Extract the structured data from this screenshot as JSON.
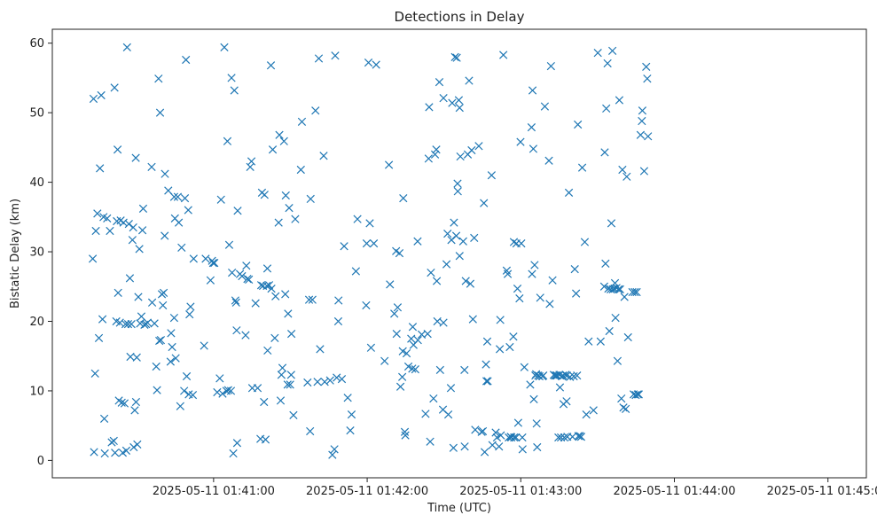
{
  "chart_data": {
    "type": "scatter",
    "title": "Detections in Delay",
    "xlabel": "Time (UTC)",
    "ylabel": "Bistatic Delay (km)",
    "marker": "x",
    "color": "#1f77b4",
    "grid": false,
    "legend": "none",
    "x_unit": "seconds after 2025-05-11 01:40:00 UTC",
    "xlim": [
      -3,
      315
    ],
    "ylim": [
      -2.5,
      62
    ],
    "x_ticks": [
      {
        "value": 60,
        "label": "2025-05-11 01:41:00"
      },
      {
        "value": 120,
        "label": "2025-05-11 01:42:00"
      },
      {
        "value": 180,
        "label": "2025-05-11 01:43:00"
      },
      {
        "value": 240,
        "label": "2025-05-11 01:44:00"
      },
      {
        "value": 300,
        "label": "2025-05-11 01:45:00"
      }
    ],
    "y_ticks": [
      {
        "value": 0,
        "label": "0"
      },
      {
        "value": 10,
        "label": "10"
      },
      {
        "value": 20,
        "label": "20"
      },
      {
        "value": 30,
        "label": "30"
      },
      {
        "value": 40,
        "label": "40"
      },
      {
        "value": 50,
        "label": "50"
      },
      {
        "value": 60,
        "label": "60"
      }
    ],
    "points": [
      [
        12.8,
        29
      ],
      [
        13.1,
        52
      ],
      [
        13.3,
        1.2
      ],
      [
        13.7,
        12.5
      ],
      [
        14,
        33
      ],
      [
        14.6,
        35.5
      ],
      [
        15.2,
        17.6
      ],
      [
        15.6,
        42
      ],
      [
        16.1,
        52.5
      ],
      [
        16.6,
        20.3
      ],
      [
        17,
        35
      ],
      [
        17.3,
        6
      ],
      [
        17.5,
        1
      ],
      [
        18.4,
        34.8
      ],
      [
        19.5,
        33
      ],
      [
        20.2,
        2.6
      ],
      [
        21,
        2.8
      ],
      [
        21.3,
        53.6
      ],
      [
        21.5,
        1.1
      ],
      [
        22,
        20
      ],
      [
        22.2,
        34.4
      ],
      [
        22.5,
        44.7
      ],
      [
        22.7,
        24.1
      ],
      [
        23,
        8.6
      ],
      [
        23.4,
        19.8
      ],
      [
        23.7,
        34.5
      ],
      [
        24.1,
        8.3
      ],
      [
        24.5,
        1.1
      ],
      [
        24.8,
        34.2
      ],
      [
        25.2,
        8.2
      ],
      [
        25.6,
        19.6
      ],
      [
        25.9,
        1.4
      ],
      [
        26.2,
        59.4
      ],
      [
        26.6,
        19.6
      ],
      [
        26.9,
        34
      ],
      [
        27.3,
        26.2
      ],
      [
        27.5,
        14.9
      ],
      [
        27.9,
        19.6
      ],
      [
        28.3,
        31.7
      ],
      [
        28.6,
        33.5
      ],
      [
        28.8,
        1.9
      ],
      [
        29.2,
        7.2
      ],
      [
        29.6,
        43.5
      ],
      [
        29.7,
        8.4
      ],
      [
        30,
        14.8
      ],
      [
        30.2,
        2.3
      ],
      [
        30.6,
        23.5
      ],
      [
        31,
        30.4
      ],
      [
        31.3,
        19.7
      ],
      [
        31.8,
        20.7
      ],
      [
        32.2,
        33.1
      ],
      [
        32.5,
        36.2
      ],
      [
        33,
        19.5
      ],
      [
        33.6,
        19.6
      ],
      [
        34.2,
        19.8
      ],
      [
        35.8,
        42.2
      ],
      [
        36,
        22.7
      ],
      [
        36.9,
        19.7
      ],
      [
        37.6,
        13.5
      ],
      [
        37.9,
        10.1
      ],
      [
        38.5,
        54.9
      ],
      [
        38.8,
        17.2
      ],
      [
        39.1,
        50
      ],
      [
        39.4,
        17.3
      ],
      [
        39.8,
        23.9
      ],
      [
        40.2,
        22.3
      ],
      [
        40.5,
        24.1
      ],
      [
        40.9,
        32.3
      ],
      [
        41,
        41.2
      ],
      [
        42.3,
        38.8
      ],
      [
        43.2,
        14.2
      ],
      [
        43.4,
        18.3
      ],
      [
        43.8,
        16.3
      ],
      [
        44.6,
        20.5
      ],
      [
        44.6,
        37.9
      ],
      [
        44.9,
        34.8
      ],
      [
        45.2,
        14.7
      ],
      [
        46,
        37.9
      ],
      [
        46.4,
        34.2
      ],
      [
        47,
        7.8
      ],
      [
        47.5,
        30.6
      ],
      [
        48.5,
        10
      ],
      [
        48.8,
        37.7
      ],
      [
        49.2,
        57.6
      ],
      [
        49.5,
        12.1
      ],
      [
        50.1,
        36
      ],
      [
        50.3,
        9.5
      ],
      [
        50.6,
        21
      ],
      [
        51,
        22.1
      ],
      [
        51.9,
        9.4
      ],
      [
        52.2,
        29
      ],
      [
        56.3,
        16.5
      ],
      [
        56.9,
        29
      ],
      [
        58.8,
        25.9
      ],
      [
        59.4,
        28.7
      ],
      [
        59.8,
        28.4
      ],
      [
        60.3,
        28.4
      ],
      [
        61.4,
        9.8
      ],
      [
        62.4,
        11.8
      ],
      [
        62.9,
        37.5
      ],
      [
        63.5,
        9.6
      ],
      [
        64.2,
        59.4
      ],
      [
        65,
        10
      ],
      [
        65.4,
        45.9
      ],
      [
        65.7,
        10.1
      ],
      [
        66.1,
        31
      ],
      [
        66.8,
        10
      ],
      [
        67,
        55
      ],
      [
        67.2,
        27
      ],
      [
        67.7,
        1
      ],
      [
        68.1,
        53.2
      ],
      [
        68.5,
        23
      ],
      [
        68.8,
        22.7
      ],
      [
        69,
        18.7
      ],
      [
        69.2,
        2.5
      ],
      [
        69.4,
        35.9
      ],
      [
        70.3,
        26.8
      ],
      [
        71.1,
        26.5
      ],
      [
        72.5,
        18
      ],
      [
        72.8,
        28
      ],
      [
        73.2,
        26.1
      ],
      [
        73.8,
        26
      ],
      [
        74.3,
        42.2
      ],
      [
        74.8,
        43
      ],
      [
        75.1,
        10.4
      ],
      [
        76.4,
        22.6
      ],
      [
        77.2,
        10.4
      ],
      [
        78.3,
        3.1
      ],
      [
        78.6,
        25.2
      ],
      [
        78.9,
        38.5
      ],
      [
        79.3,
        25.1
      ],
      [
        79.7,
        8.4
      ],
      [
        79.9,
        38.2
      ],
      [
        80.3,
        3
      ],
      [
        80.8,
        25.1
      ],
      [
        81,
        27.6
      ],
      [
        81.1,
        15.8
      ],
      [
        81.7,
        25.2
      ],
      [
        82.4,
        56.8
      ],
      [
        82.6,
        24.7
      ],
      [
        83.1,
        44.7
      ],
      [
        83.9,
        17.6
      ],
      [
        84.2,
        23.6
      ],
      [
        85.4,
        34.2
      ],
      [
        85.7,
        46.8
      ],
      [
        86.2,
        8.6
      ],
      [
        86.5,
        12.3
      ],
      [
        86.9,
        13.3
      ],
      [
        87.5,
        45.9
      ],
      [
        88,
        23.9
      ],
      [
        88.2,
        38.1
      ],
      [
        88.9,
        10.9
      ],
      [
        89.1,
        21.1
      ],
      [
        89.5,
        36.3
      ],
      [
        89.9,
        10.9
      ],
      [
        90.3,
        12.3
      ],
      [
        90.4,
        18.2
      ],
      [
        91.2,
        6.5
      ],
      [
        91.9,
        34.7
      ],
      [
        94.1,
        41.8
      ],
      [
        94.5,
        48.7
      ],
      [
        96.7,
        11.2
      ],
      [
        97.3,
        23.1
      ],
      [
        97.7,
        4.2
      ],
      [
        97.9,
        37.6
      ],
      [
        98.6,
        23.1
      ],
      [
        99.8,
        50.3
      ],
      [
        100.6,
        11.3
      ],
      [
        101.1,
        57.8
      ],
      [
        101.6,
        16
      ],
      [
        103,
        43.8
      ],
      [
        103.4,
        11.3
      ],
      [
        105.5,
        11.5
      ],
      [
        106.4,
        0.8
      ],
      [
        107.2,
        1.6
      ],
      [
        107.5,
        58.2
      ],
      [
        108.1,
        11.9
      ],
      [
        108.7,
        20
      ],
      [
        108.8,
        23
      ],
      [
        110.1,
        11.7
      ],
      [
        111,
        30.8
      ],
      [
        112.4,
        9
      ],
      [
        113.4,
        4.3
      ],
      [
        113.9,
        6.6
      ],
      [
        115.6,
        27.2
      ],
      [
        116.2,
        34.7
      ],
      [
        119.6,
        22.3
      ],
      [
        119.8,
        31.2
      ],
      [
        120.5,
        57.2
      ],
      [
        121,
        34.1
      ],
      [
        121.5,
        16.2
      ],
      [
        122.6,
        31.2
      ],
      [
        123.5,
        56.9
      ],
      [
        126.8,
        14.3
      ],
      [
        128.5,
        42.5
      ],
      [
        128.9,
        25.3
      ],
      [
        130.6,
        21.1
      ],
      [
        131.3,
        30.1
      ],
      [
        131.5,
        18.2
      ],
      [
        131.9,
        22
      ],
      [
        132.6,
        29.8
      ],
      [
        133,
        10.6
      ],
      [
        133.7,
        12
      ],
      [
        133.9,
        15.7
      ],
      [
        134.1,
        37.7
      ],
      [
        134.7,
        4.1
      ],
      [
        134.9,
        3.6
      ],
      [
        135.4,
        15.4
      ],
      [
        136.1,
        13.5
      ],
      [
        137.2,
        17.5
      ],
      [
        137.6,
        13.2
      ],
      [
        137.8,
        19.2
      ],
      [
        138.1,
        16.6
      ],
      [
        138.8,
        13.1
      ],
      [
        139.7,
        31.5
      ],
      [
        139.8,
        17.3
      ],
      [
        141.3,
        18.1
      ],
      [
        142.8,
        6.7
      ],
      [
        143.6,
        18.2
      ],
      [
        144,
        43.4
      ],
      [
        144.2,
        50.8
      ],
      [
        144.6,
        2.7
      ],
      [
        144.9,
        27
      ],
      [
        145.9,
        8.9
      ],
      [
        146.5,
        44
      ],
      [
        147,
        44.7
      ],
      [
        147.2,
        25.8
      ],
      [
        147.4,
        20
      ],
      [
        148.2,
        54.4
      ],
      [
        148.5,
        13
      ],
      [
        149.6,
        7.3
      ],
      [
        149.8,
        52.1
      ],
      [
        149.8,
        19.8
      ],
      [
        151,
        28.2
      ],
      [
        151.4,
        32.6
      ],
      [
        151.7,
        6.6
      ],
      [
        152.7,
        10.4
      ],
      [
        152.9,
        31.7
      ],
      [
        153.2,
        51.4
      ],
      [
        153.7,
        1.8
      ],
      [
        153.9,
        34.2
      ],
      [
        154.3,
        58
      ],
      [
        154.8,
        32.3
      ],
      [
        155,
        57.9
      ],
      [
        155.3,
        39.8
      ],
      [
        155.4,
        38.7
      ],
      [
        155.8,
        51.8
      ],
      [
        156.1,
        29.4
      ],
      [
        156.1,
        50.7
      ],
      [
        156.4,
        43.7
      ],
      [
        157.5,
        31.5
      ],
      [
        158,
        13
      ],
      [
        158.1,
        2
      ],
      [
        158.5,
        25.8
      ],
      [
        159.3,
        44
      ],
      [
        159.8,
        54.6
      ],
      [
        160.3,
        25.4
      ],
      [
        160.8,
        44.6
      ],
      [
        161.3,
        20.3
      ],
      [
        161.8,
        32
      ],
      [
        162.2,
        4.4
      ],
      [
        163.6,
        45.2
      ],
      [
        164.7,
        4.1
      ],
      [
        165.2,
        4.2
      ],
      [
        165.6,
        37
      ],
      [
        165.9,
        1.2
      ],
      [
        166.4,
        13.8
      ],
      [
        166.6,
        11.4
      ],
      [
        166.9,
        17.1
      ],
      [
        167.1,
        11.4
      ],
      [
        168.6,
        41
      ],
      [
        168.9,
        2.2
      ],
      [
        170.2,
        4
      ],
      [
        170.7,
        3.3
      ],
      [
        171.5,
        2
      ],
      [
        171.8,
        16
      ],
      [
        172,
        20.2
      ],
      [
        172.2,
        3.6
      ],
      [
        173.2,
        58.3
      ],
      [
        174.5,
        27.3
      ],
      [
        174.9,
        26.8
      ],
      [
        175.3,
        3.3
      ],
      [
        175.7,
        16.3
      ],
      [
        176.1,
        3.4
      ],
      [
        176.3,
        3.3
      ],
      [
        177.1,
        17.8
      ],
      [
        177.3,
        31.4
      ],
      [
        177.4,
        3.3
      ],
      [
        178.1,
        3.3
      ],
      [
        178.3,
        31.2
      ],
      [
        178.7,
        24.7
      ],
      [
        179,
        5.4
      ],
      [
        179.5,
        23.3
      ],
      [
        179.9,
        45.8
      ],
      [
        180.2,
        31.2
      ],
      [
        180.6,
        3.3
      ],
      [
        180.7,
        1.6
      ],
      [
        181.4,
        13.4
      ],
      [
        183.7,
        10.9
      ],
      [
        184.2,
        47.9
      ],
      [
        184.4,
        26.8
      ],
      [
        184.6,
        53.2
      ],
      [
        184.9,
        44.8
      ],
      [
        185.1,
        8.8
      ],
      [
        185.4,
        28.1
      ],
      [
        185.7,
        12.2
      ],
      [
        186,
        12.4
      ],
      [
        186.2,
        5.3
      ],
      [
        186.4,
        1.9
      ],
      [
        186.8,
        12.2
      ],
      [
        187.3,
        12.1
      ],
      [
        187.6,
        23.4
      ],
      [
        188.5,
        12.1
      ],
      [
        188.8,
        12.2
      ],
      [
        189.4,
        50.9
      ],
      [
        191,
        43.1
      ],
      [
        191.3,
        22.5
      ],
      [
        191.8,
        56.7
      ],
      [
        192.4,
        25.9
      ],
      [
        192.9,
        12.3
      ],
      [
        193.3,
        12.2
      ],
      [
        193.8,
        12.2
      ],
      [
        194.2,
        12.2
      ],
      [
        194.7,
        3.3
      ],
      [
        195.1,
        12.3
      ],
      [
        195.3,
        10.5
      ],
      [
        195.7,
        3.3
      ],
      [
        196.1,
        12.1
      ],
      [
        196.5,
        12.2
      ],
      [
        196.7,
        8.1
      ],
      [
        197,
        3.3
      ],
      [
        197.5,
        12.3
      ],
      [
        197.9,
        8.5
      ],
      [
        198,
        12.2
      ],
      [
        198.2,
        3.4
      ],
      [
        198.8,
        38.5
      ],
      [
        199.2,
        12
      ],
      [
        200.2,
        3.4
      ],
      [
        200.7,
        12.1
      ],
      [
        201.1,
        27.5
      ],
      [
        201.6,
        24
      ],
      [
        202,
        12.2
      ],
      [
        202.3,
        48.3
      ],
      [
        202.5,
        3.5
      ],
      [
        203.1,
        3.5
      ],
      [
        203.6,
        3.4
      ],
      [
        204,
        42.1
      ],
      [
        205,
        31.4
      ],
      [
        205.6,
        6.6
      ],
      [
        206.5,
        17.1
      ],
      [
        208.4,
        7.2
      ],
      [
        210.1,
        58.6
      ],
      [
        211.2,
        17.1
      ],
      [
        212.6,
        25
      ],
      [
        212.8,
        44.3
      ],
      [
        213.1,
        28.3
      ],
      [
        213.4,
        50.6
      ],
      [
        213.9,
        57.1
      ],
      [
        214.2,
        24.7
      ],
      [
        214.6,
        18.6
      ],
      [
        215.1,
        24.6
      ],
      [
        215.4,
        34.1
      ],
      [
        215.8,
        58.9
      ],
      [
        216,
        24.6
      ],
      [
        216.6,
        24.7
      ],
      [
        216.8,
        25.5
      ],
      [
        217,
        20.5
      ],
      [
        217.4,
        24.8
      ],
      [
        217.8,
        14.3
      ],
      [
        218.2,
        24.6
      ],
      [
        218.5,
        51.8
      ],
      [
        218.8,
        24.6
      ],
      [
        219.3,
        8.9
      ],
      [
        219.7,
        41.8
      ],
      [
        220.1,
        7.6
      ],
      [
        220.5,
        23.5
      ],
      [
        221,
        7.4
      ],
      [
        221.4,
        40.8
      ],
      [
        221.9,
        17.7
      ],
      [
        223.6,
        24.2
      ],
      [
        224.1,
        9.5
      ],
      [
        224.5,
        24.2
      ],
      [
        224.9,
        9.4
      ],
      [
        225.3,
        24.2
      ],
      [
        225.7,
        9.5
      ],
      [
        226.1,
        9.5
      ],
      [
        226.8,
        46.8
      ],
      [
        227.3,
        48.8
      ],
      [
        227.5,
        50.3
      ],
      [
        228.2,
        41.6
      ],
      [
        229,
        56.6
      ],
      [
        229.4,
        54.9
      ],
      [
        229.7,
        46.6
      ]
    ]
  }
}
